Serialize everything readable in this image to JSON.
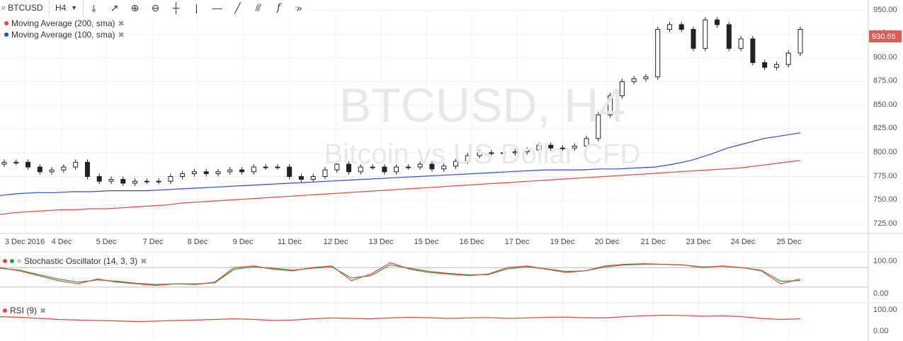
{
  "toolbar": {
    "symbol": "BTCUSD",
    "interval": "H4",
    "tools": [
      {
        "name": "compare-icon",
        "glyph": "⤓"
      },
      {
        "name": "indicators-icon",
        "glyph": "↗"
      },
      {
        "name": "zoom-in-icon",
        "glyph": "⊕"
      },
      {
        "name": "zoom-out-icon",
        "glyph": "⊖"
      },
      {
        "name": "crosshair-icon",
        "glyph": "┼"
      },
      {
        "name": "vertical-line-icon",
        "glyph": "|"
      },
      {
        "name": "horizontal-line-icon",
        "glyph": "—"
      },
      {
        "name": "trend-line-icon",
        "glyph": "╱"
      },
      {
        "name": "fib-icon",
        "glyph": "⫻"
      },
      {
        "name": "function-icon",
        "glyph": "f"
      },
      {
        "name": "more-icon",
        "glyph": "»"
      }
    ]
  },
  "legends": {
    "ma200": {
      "label": "Moving Average (200, sma)",
      "color": "#e8453c"
    },
    "ma100": {
      "label": "Moving Average (100, sma)",
      "color": "#2a4bd7"
    },
    "stoch": {
      "label": "Stochastic Oscillator (14, 3, 3)",
      "colors": [
        "#e8453c",
        "#2e9e3a",
        "#cccccc"
      ]
    },
    "rsi": {
      "label": "RSI (9)",
      "color": "#e8453c"
    }
  },
  "watermark": {
    "line1": "BTCUSD, H4",
    "line2": "Bitcoin vs US Dollar CFD"
  },
  "chart_data": {
    "type": "candlestick",
    "x_labels": [
      "3 Dec 2016",
      "4 Dec",
      "5 Dec",
      "7 Dec",
      "8 Dec",
      "9 Dec",
      "11 Dec",
      "12 Dec",
      "13 Dec",
      "15 Dec",
      "16 Dec",
      "17 Dec",
      "19 Dec",
      "20 Dec",
      "21 Dec",
      "23 Dec",
      "24 Dec",
      "25 Dec"
    ],
    "price_ticks": [
      950,
      925,
      900,
      875,
      850,
      825,
      800,
      775,
      750,
      725
    ],
    "price_tick_labels": [
      "950.00",
      "925.00",
      "900.00",
      "875.00",
      "850.00",
      "825.00",
      "800.00",
      "775.00",
      "750.00",
      "725.00"
    ],
    "ylim": [
      715,
      955
    ],
    "last_price": "930.66",
    "close": [
      790,
      790,
      785,
      780,
      782,
      785,
      790,
      775,
      770,
      772,
      768,
      770,
      770,
      770,
      775,
      778,
      780,
      778,
      780,
      782,
      780,
      785,
      785,
      785,
      775,
      772,
      775,
      782,
      788,
      780,
      785,
      785,
      780,
      785,
      785,
      788,
      783,
      786,
      791,
      797,
      800,
      800,
      800,
      801,
      803,
      808,
      805,
      805,
      807,
      815,
      840,
      860,
      875,
      878,
      880,
      930,
      935,
      930,
      910,
      940,
      935,
      910,
      920,
      895,
      890,
      893,
      905,
      930
    ],
    "ma200": [
      735,
      737,
      738,
      739,
      740,
      740,
      741,
      741,
      742,
      743,
      744,
      745,
      747,
      748,
      749,
      750,
      751,
      752,
      753,
      754,
      755,
      756,
      757,
      758,
      759,
      760,
      761,
      762,
      763,
      764,
      765,
      766,
      767,
      768,
      769,
      770,
      771,
      772,
      773,
      774,
      775,
      776,
      777,
      778,
      779,
      780,
      781,
      782,
      783,
      784,
      786,
      788,
      790,
      792
    ],
    "ma100": [
      755,
      757,
      758,
      758,
      759,
      759,
      760,
      760,
      760,
      761,
      762,
      763,
      764,
      765,
      766,
      767,
      768,
      769,
      770,
      771,
      772,
      773,
      774,
      775,
      776,
      777,
      778,
      779,
      780,
      781,
      782,
      782,
      782,
      783,
      783,
      784,
      785,
      788,
      792,
      798,
      805,
      810,
      815,
      818,
      821
    ],
    "stoch_ticks": [
      "100.00",
      "0.00"
    ],
    "stoch_k": [
      80,
      70,
      55,
      40,
      30,
      45,
      35,
      30,
      25,
      30,
      28,
      35,
      80,
      85,
      75,
      70,
      80,
      85,
      40,
      60,
      95,
      75,
      65,
      60,
      55,
      60,
      80,
      85,
      75,
      65,
      70,
      85,
      90,
      92,
      90,
      88,
      80,
      85,
      80,
      70,
      30,
      45
    ],
    "stoch_d": [
      78,
      72,
      58,
      45,
      35,
      42,
      38,
      32,
      28,
      30,
      30,
      33,
      75,
      82,
      78,
      72,
      78,
      82,
      48,
      55,
      88,
      78,
      68,
      62,
      58,
      58,
      76,
      82,
      76,
      68,
      70,
      82,
      88,
      90,
      90,
      88,
      82,
      84,
      80,
      72,
      38,
      40
    ],
    "rsi_ticks": [
      "100.00",
      "0.00"
    ],
    "rsi": [
      68,
      65,
      60,
      55,
      52,
      50,
      48,
      45,
      47,
      50,
      52,
      55,
      58,
      55,
      50,
      52,
      58,
      62,
      60,
      58,
      62,
      65,
      63,
      60,
      62,
      64,
      60,
      62,
      65,
      66,
      63,
      62,
      68,
      72,
      75,
      74,
      70,
      72,
      68,
      60,
      55,
      58
    ]
  }
}
